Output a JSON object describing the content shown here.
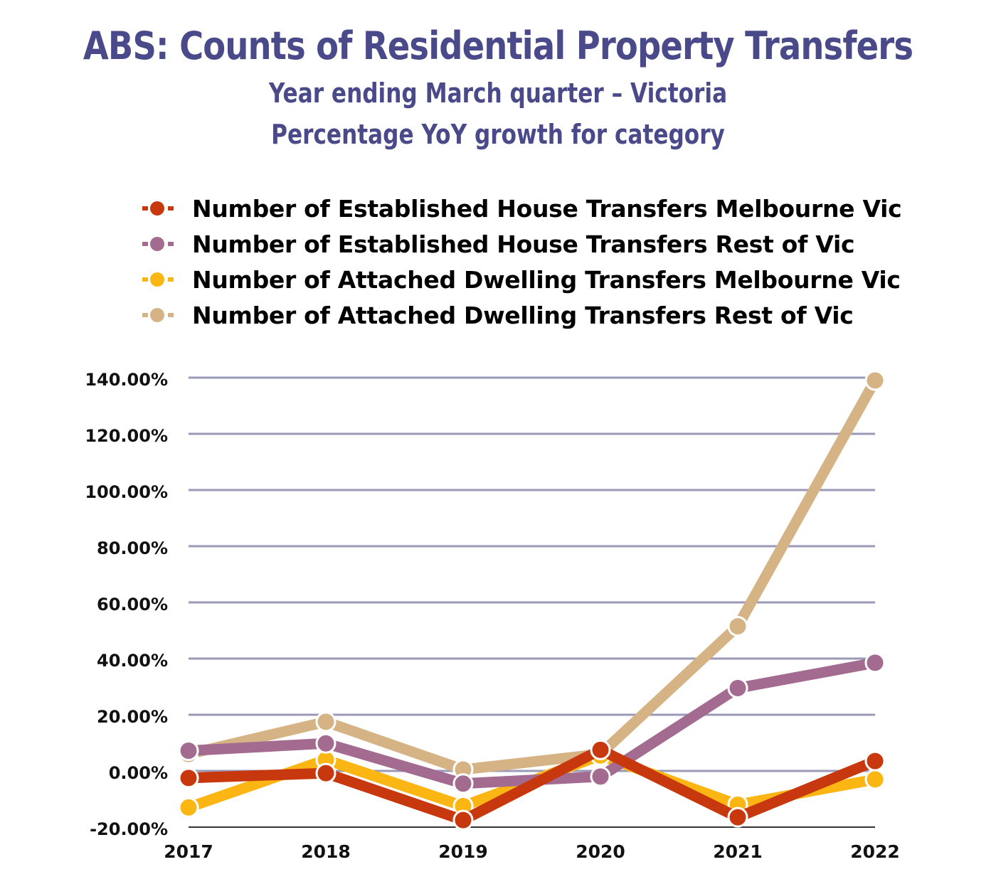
{
  "title": "ABS: Counts of Residential Property Transfers",
  "subtitle_1": "Year ending March quarter – Victoria",
  "subtitle_2": "Percentage YoY growth for category",
  "chart_data": {
    "type": "line",
    "x": [
      "2017",
      "2018",
      "2019",
      "2020",
      "2021",
      "2022"
    ],
    "ylim": [
      -20,
      140
    ],
    "y_ticks": [
      {
        "value": 140,
        "label": "140.00%"
      },
      {
        "value": 120,
        "label": "120.00%"
      },
      {
        "value": 100,
        "label": "100.00%"
      },
      {
        "value": 80,
        "label": "80.00%"
      },
      {
        "value": 60,
        "label": "60.00%"
      },
      {
        "value": 40,
        "label": "40.00%"
      },
      {
        "value": 20,
        "label": "20.00%"
      },
      {
        "value": 0,
        "label": "0.00%"
      },
      {
        "value": -20,
        "label": "-20.00%"
      }
    ],
    "grid": true,
    "legend_position": "top",
    "series": [
      {
        "name": "Number of Established House Transfers Melbourne Vic",
        "color": "#c8380e",
        "values": [
          -2.5,
          -0.8,
          -17.5,
          7.5,
          -16.5,
          3.5
        ]
      },
      {
        "name": "Number of Established House Transfers Rest of Vic",
        "color": "#a46b90",
        "values": [
          7.2,
          9.8,
          -4.5,
          -2.0,
          29.5,
          38.5
        ]
      },
      {
        "name": "Number of Attached Dwelling Transfers Melbourne Vic",
        "color": "#fbb614",
        "values": [
          -13.0,
          4.0,
          -12.5,
          5.5,
          -12.0,
          -3.0
        ]
      },
      {
        "name": "Number of Attached Dwelling Transfers Rest of Vic",
        "color": "#d6b384",
        "values": [
          6.0,
          17.5,
          0.5,
          6.0,
          51.5,
          139.0
        ]
      }
    ],
    "draw_order": [
      3,
      2,
      1,
      0
    ]
  }
}
